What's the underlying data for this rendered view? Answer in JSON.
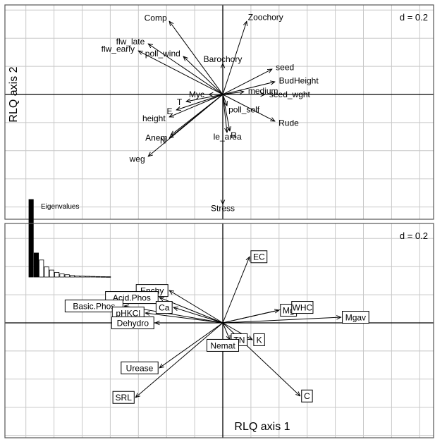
{
  "chart_data": [
    {
      "type": "scatter",
      "panel": "traits",
      "scale_label": "d = 0.2",
      "ylabel": "RLQ axis 2",
      "grid": true,
      "xlim": [
        -1.55,
        1.45
      ],
      "ylim": [
        -0.83,
        0.68
      ],
      "arrows": [
        {
          "label": "Comp",
          "x": -0.38,
          "y": 0.52
        },
        {
          "label": "Zoochory",
          "x": 0.17,
          "y": 0.52
        },
        {
          "label": "flw_late",
          "x": -0.53,
          "y": 0.36
        },
        {
          "label": "flw_early",
          "x": -0.6,
          "y": 0.31
        },
        {
          "label": "poll_wind",
          "x": -0.28,
          "y": 0.27
        },
        {
          "label": "Barochory",
          "x": 0.0,
          "y": 0.22
        },
        {
          "label": "seed",
          "x": 0.35,
          "y": 0.18
        },
        {
          "label": "BudHeight",
          "x": 0.37,
          "y": 0.09
        },
        {
          "label": "medium",
          "x": 0.15,
          "y": 0.02
        },
        {
          "label": "seed_wght",
          "x": 0.3,
          "y": 0.0
        },
        {
          "label": "Myc",
          "x": -0.1,
          "y": 0.0
        },
        {
          "label": "T",
          "x": -0.26,
          "y": -0.05
        },
        {
          "label": "E",
          "x": -0.33,
          "y": -0.11
        },
        {
          "label": "poll_self",
          "x": 0.03,
          "y": -0.08
        },
        {
          "label": "height",
          "x": -0.38,
          "y": -0.16
        },
        {
          "label": "Rude",
          "x": 0.37,
          "y": -0.19
        },
        {
          "label": "Anem",
          "x": -0.37,
          "y": -0.29
        },
        {
          "label": "N",
          "x": -0.38,
          "y": -0.31
        },
        {
          "label": "le_area",
          "x": 0.03,
          "y": -0.27
        },
        {
          "label": "R",
          "x": 0.05,
          "y": -0.26
        },
        {
          "label": "weg",
          "x": -0.53,
          "y": -0.44
        },
        {
          "label": "Stress",
          "x": 0.0,
          "y": -0.78
        }
      ]
    },
    {
      "type": "scatter",
      "panel": "environment",
      "scale_label": "d = 0.2",
      "xlabel": "RLQ axis 1",
      "grid": true,
      "xlim": [
        -1.55,
        1.45
      ],
      "ylim": [
        -0.83,
        0.68
      ],
      "arrows": [
        {
          "label": "EC",
          "x": 0.19,
          "y": 0.47
        },
        {
          "label": "Enchy",
          "x": -0.38,
          "y": 0.23
        },
        {
          "label": "Acid.Phos",
          "x": -0.45,
          "y": 0.18
        },
        {
          "label": "Basic.Phos",
          "x": -0.7,
          "y": 0.12
        },
        {
          "label": "pHKCl",
          "x": -0.55,
          "y": 0.07
        },
        {
          "label": "Ca",
          "x": -0.35,
          "y": 0.11
        },
        {
          "label": "Dehydro",
          "x": -0.48,
          "y": 0.0
        },
        {
          "label": "Mg",
          "x": 0.4,
          "y": 0.09
        },
        {
          "label": "WHC",
          "x": 0.48,
          "y": 0.11
        },
        {
          "label": "Mgav",
          "x": 0.84,
          "y": 0.04
        },
        {
          "label": "TN",
          "x": 0.05,
          "y": -0.12
        },
        {
          "label": "K",
          "x": 0.21,
          "y": -0.12
        },
        {
          "label": "Nemat",
          "x": 0.0,
          "y": -0.16
        },
        {
          "label": "Urease",
          "x": -0.45,
          "y": -0.32
        },
        {
          "label": "C",
          "x": 0.55,
          "y": -0.52
        },
        {
          "label": "SRL",
          "x": -0.62,
          "y": -0.53
        }
      ],
      "inset": {
        "title": "Eigenvalues",
        "type": "bar",
        "values": [
          1.0,
          0.31,
          0.22,
          0.13,
          0.09,
          0.06,
          0.04,
          0.03,
          0.02,
          0.015,
          0.012,
          0.01,
          0.008,
          0.006,
          0.005,
          0.004
        ],
        "filled_count": 2
      }
    }
  ]
}
